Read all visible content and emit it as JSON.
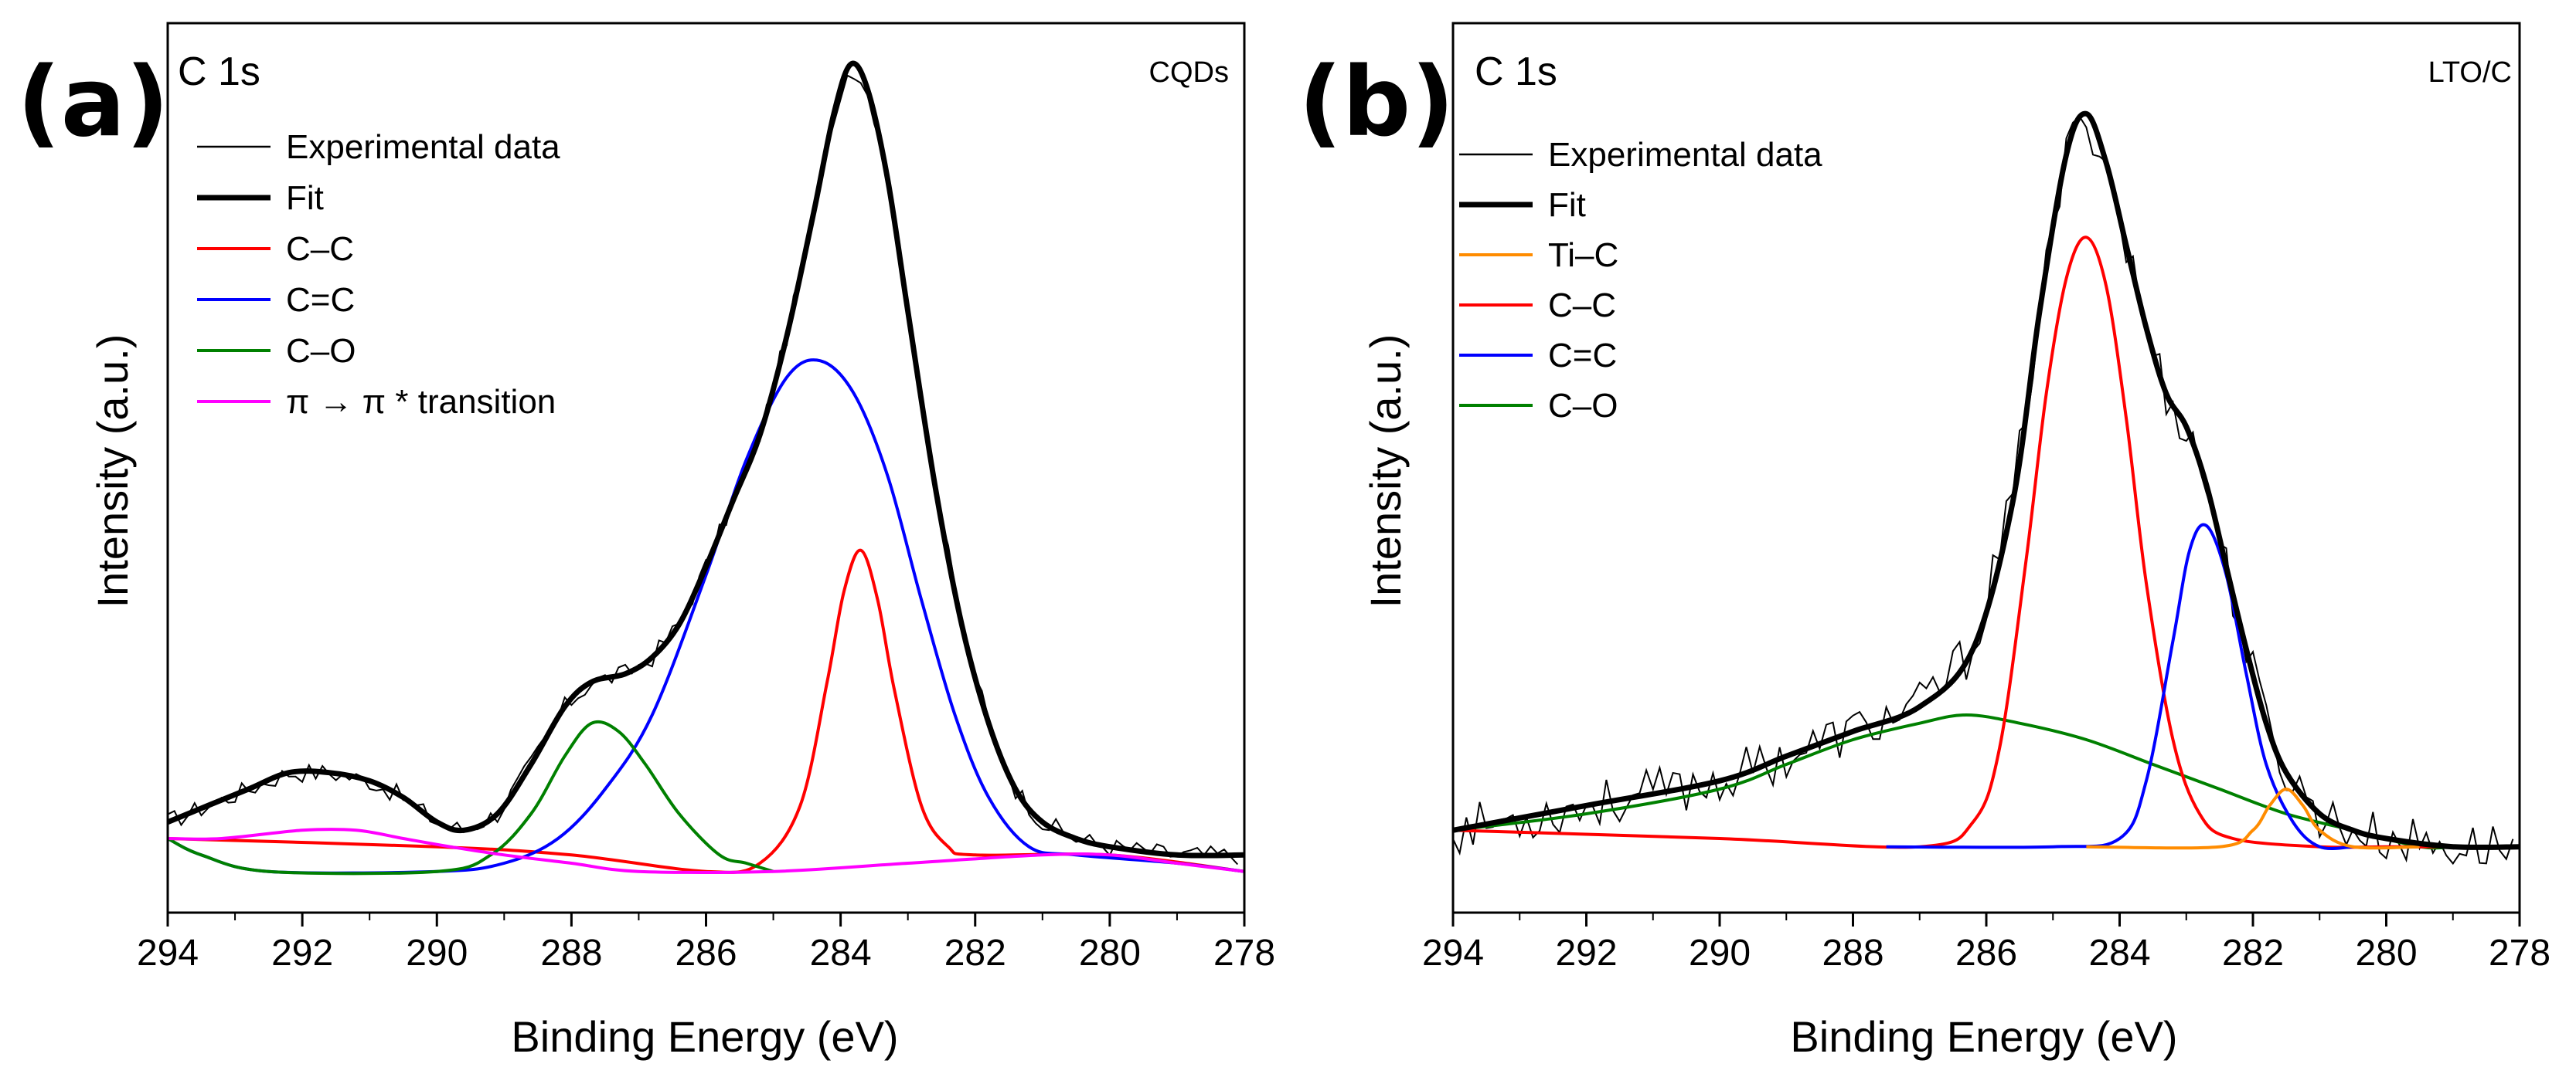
{
  "chart_data": [
    {
      "panel_label": "(a)",
      "type": "line",
      "title": "C 1s",
      "sample": "CQDs",
      "xlabel": "Binding Energy (eV)",
      "ylabel": "Intensity (a.u.)",
      "xlim": [
        294,
        278
      ],
      "x_reversed": true,
      "x_ticks": [
        294,
        292,
        290,
        288,
        286,
        284,
        282,
        280,
        278
      ],
      "x_tick_labels": [
        "294",
        "292",
        "290",
        "288",
        "286",
        "284",
        "282",
        "280",
        "278"
      ],
      "ylim": [
        -0.05,
        1.03
      ],
      "y_ticks_shown": false,
      "grid": false,
      "legend_position": "top-left",
      "legend": [
        {
          "label": "Experimental data",
          "color": "#000000",
          "style": "thin"
        },
        {
          "label": "Fit",
          "color": "#000000",
          "style": "thick"
        },
        {
          "label": "C–C",
          "color": "#ff0000",
          "style": "normal"
        },
        {
          "label": "C=C",
          "color": "#0000ff",
          "style": "normal"
        },
        {
          "label": "C–O",
          "color": "#008000",
          "style": "normal"
        },
        {
          "label": "π → π * transition",
          "color": "#ff00ff",
          "style": "normal"
        }
      ],
      "series": [
        {
          "name": "C–C",
          "color": "#ff0000",
          "points": [
            [
              294,
              0.04
            ],
            [
              290,
              0.03
            ],
            [
              288,
              0.02
            ],
            [
              286,
              0.0
            ],
            [
              285.2,
              0.01
            ],
            [
              284.6,
              0.08
            ],
            [
              284.2,
              0.23
            ],
            [
              283.95,
              0.34
            ],
            [
              283.7,
              0.39
            ],
            [
              283.45,
              0.33
            ],
            [
              283.2,
              0.22
            ],
            [
              282.8,
              0.08
            ],
            [
              282.4,
              0.03
            ],
            [
              282,
              0.02
            ],
            [
              280,
              0.02
            ],
            [
              278,
              0.0
            ]
          ]
        },
        {
          "name": "C=C",
          "color": "#0000ff",
          "points": [
            [
              294,
              0.04
            ],
            [
              293.5,
              0.02
            ],
            [
              292.5,
              0.0
            ],
            [
              290,
              0.0
            ],
            [
              289,
              0.01
            ],
            [
              288.2,
              0.04
            ],
            [
              287.5,
              0.1
            ],
            [
              286.8,
              0.19
            ],
            [
              286,
              0.36
            ],
            [
              285.4,
              0.5
            ],
            [
              284.8,
              0.6
            ],
            [
              284.3,
              0.62
            ],
            [
              283.8,
              0.58
            ],
            [
              283.3,
              0.48
            ],
            [
              282.8,
              0.33
            ],
            [
              282.3,
              0.19
            ],
            [
              281.8,
              0.09
            ],
            [
              281.2,
              0.03
            ],
            [
              280.5,
              0.02
            ],
            [
              279,
              0.01
            ],
            [
              278,
              0.0
            ]
          ]
        },
        {
          "name": "C–O",
          "color": "#008000",
          "points": [
            [
              294,
              0.04
            ],
            [
              293.5,
              0.02
            ],
            [
              292.5,
              0.0
            ],
            [
              290,
              0.0
            ],
            [
              289.2,
              0.02
            ],
            [
              288.6,
              0.07
            ],
            [
              288.1,
              0.14
            ],
            [
              287.7,
              0.18
            ],
            [
              287.3,
              0.17
            ],
            [
              286.9,
              0.13
            ],
            [
              286.4,
              0.07
            ],
            [
              285.8,
              0.02
            ],
            [
              285.4,
              0.01
            ],
            [
              285,
              0.0
            ]
          ]
        },
        {
          "name": "π → π * transition",
          "color": "#ff00ff",
          "points": [
            [
              294,
              0.04
            ],
            [
              293.2,
              0.04
            ],
            [
              292,
              0.05
            ],
            [
              291.2,
              0.05
            ],
            [
              290.5,
              0.04
            ],
            [
              289.8,
              0.03
            ],
            [
              289,
              0.02
            ],
            [
              288,
              0.01
            ],
            [
              287,
              0.0
            ],
            [
              285,
              0.0
            ],
            [
              283,
              0.01
            ],
            [
              281,
              0.02
            ],
            [
              280,
              0.02
            ],
            [
              279,
              0.01
            ],
            [
              278,
              0.0
            ]
          ]
        },
        {
          "name": "Fit",
          "color": "#000000",
          "thick": true,
          "points": [
            [
              294,
              0.06
            ],
            [
              293.4,
              0.08
            ],
            [
              292.8,
              0.1
            ],
            [
              292.2,
              0.12
            ],
            [
              291.6,
              0.12
            ],
            [
              291,
              0.11
            ],
            [
              290.5,
              0.09
            ],
            [
              290,
              0.06
            ],
            [
              289.6,
              0.05
            ],
            [
              289.1,
              0.07
            ],
            [
              288.6,
              0.13
            ],
            [
              288.1,
              0.2
            ],
            [
              287.7,
              0.23
            ],
            [
              287.2,
              0.24
            ],
            [
              286.8,
              0.26
            ],
            [
              286.4,
              0.3
            ],
            [
              286,
              0.37
            ],
            [
              285.6,
              0.45
            ],
            [
              285.2,
              0.53
            ],
            [
              284.8,
              0.65
            ],
            [
              284.4,
              0.8
            ],
            [
              284.1,
              0.92
            ],
            [
              283.85,
              0.98
            ],
            [
              283.6,
              0.95
            ],
            [
              283.3,
              0.84
            ],
            [
              283,
              0.68
            ],
            [
              282.6,
              0.47
            ],
            [
              282.2,
              0.3
            ],
            [
              281.8,
              0.18
            ],
            [
              281.4,
              0.1
            ],
            [
              281,
              0.06
            ],
            [
              280.5,
              0.04
            ],
            [
              280,
              0.03
            ],
            [
              279,
              0.02
            ],
            [
              278,
              0.02
            ]
          ]
        }
      ]
    },
    {
      "panel_label": "(b)",
      "type": "line",
      "title": "C 1s",
      "sample": "LTO/C",
      "xlabel": "Binding Energy (eV)",
      "ylabel": "Intensity (a.u.)",
      "xlim": [
        294,
        278
      ],
      "x_reversed": true,
      "x_ticks": [
        294,
        292,
        290,
        288,
        286,
        284,
        282,
        280,
        278
      ],
      "x_tick_labels": [
        "294",
        "292",
        "290",
        "288",
        "286",
        "284",
        "282",
        "280",
        "278"
      ],
      "ylim": [
        -0.08,
        1.0
      ],
      "y_ticks_shown": false,
      "grid": false,
      "legend_position": "top-left",
      "legend": [
        {
          "label": "Experimental data",
          "color": "#000000",
          "style": "thin"
        },
        {
          "label": "Fit",
          "color": "#000000",
          "style": "thick"
        },
        {
          "label": "Ti–C",
          "color": "#ff8c00",
          "style": "normal"
        },
        {
          "label": "C–C",
          "color": "#ff0000",
          "style": "normal"
        },
        {
          "label": "C=C",
          "color": "#0000ff",
          "style": "normal"
        },
        {
          "label": "C–O",
          "color": "#008000",
          "style": "normal"
        }
      ],
      "series": [
        {
          "name": "C–O",
          "color": "#008000",
          "points": [
            [
              294,
              0.02
            ],
            [
              292,
              0.04
            ],
            [
              290,
              0.07
            ],
            [
              289,
              0.1
            ],
            [
              288,
              0.13
            ],
            [
              287,
              0.15
            ],
            [
              286.3,
              0.16
            ],
            [
              285.5,
              0.15
            ],
            [
              284.5,
              0.13
            ],
            [
              283.5,
              0.1
            ],
            [
              282.5,
              0.07
            ],
            [
              281.5,
              0.04
            ],
            [
              280.5,
              0.02
            ],
            [
              279.5,
              0.0
            ],
            [
              279,
              0.0
            ]
          ]
        },
        {
          "name": "C–C",
          "color": "#ff0000",
          "points": [
            [
              294,
              0.02
            ],
            [
              290,
              0.01
            ],
            [
              287,
              0.0
            ],
            [
              286.2,
              0.03
            ],
            [
              285.8,
              0.12
            ],
            [
              285.4,
              0.35
            ],
            [
              285.1,
              0.55
            ],
            [
              284.8,
              0.69
            ],
            [
              284.5,
              0.74
            ],
            [
              284.2,
              0.68
            ],
            [
              283.9,
              0.52
            ],
            [
              283.6,
              0.32
            ],
            [
              283.2,
              0.13
            ],
            [
              282.8,
              0.04
            ],
            [
              282.3,
              0.01
            ],
            [
              281,
              0.0
            ],
            [
              280,
              0.0
            ],
            [
              279,
              0.0
            ],
            [
              278,
              0.0
            ]
          ]
        },
        {
          "name": "C=C",
          "color": "#0000ff",
          "points": [
            [
              287.5,
              0.0
            ],
            [
              285,
              0.0
            ],
            [
              284,
              0.01
            ],
            [
              283.6,
              0.08
            ],
            [
              283.2,
              0.25
            ],
            [
              282.95,
              0.36
            ],
            [
              282.7,
              0.39
            ],
            [
              282.4,
              0.33
            ],
            [
              282.1,
              0.21
            ],
            [
              281.8,
              0.1
            ],
            [
              281.4,
              0.03
            ],
            [
              281,
              0.0
            ],
            [
              280.5,
              0.0
            ]
          ]
        },
        {
          "name": "Ti–C",
          "color": "#ff8c00",
          "points": [
            [
              284.5,
              0.0
            ],
            [
              282.5,
              0.0
            ],
            [
              282,
              0.02
            ],
            [
              281.75,
              0.05
            ],
            [
              281.5,
              0.07
            ],
            [
              281.25,
              0.05
            ],
            [
              281,
              0.02
            ],
            [
              280.5,
              0.0
            ],
            [
              279.5,
              0.0
            ]
          ]
        },
        {
          "name": "Fit",
          "color": "#000000",
          "thick": true,
          "points": [
            [
              294,
              0.02
            ],
            [
              292,
              0.05
            ],
            [
              290,
              0.08
            ],
            [
              289,
              0.11
            ],
            [
              288,
              0.14
            ],
            [
              287,
              0.17
            ],
            [
              286.2,
              0.24
            ],
            [
              285.6,
              0.42
            ],
            [
              285.2,
              0.65
            ],
            [
              284.8,
              0.84
            ],
            [
              284.5,
              0.89
            ],
            [
              284.2,
              0.83
            ],
            [
              283.9,
              0.73
            ],
            [
              283.6,
              0.63
            ],
            [
              283.3,
              0.55
            ],
            [
              283,
              0.51
            ],
            [
              282.7,
              0.44
            ],
            [
              282.4,
              0.34
            ],
            [
              282.1,
              0.24
            ],
            [
              281.8,
              0.15
            ],
            [
              281.5,
              0.09
            ],
            [
              281,
              0.04
            ],
            [
              280.5,
              0.02
            ],
            [
              280,
              0.01
            ],
            [
              279,
              0.0
            ],
            [
              278,
              0.0
            ]
          ]
        }
      ]
    }
  ]
}
